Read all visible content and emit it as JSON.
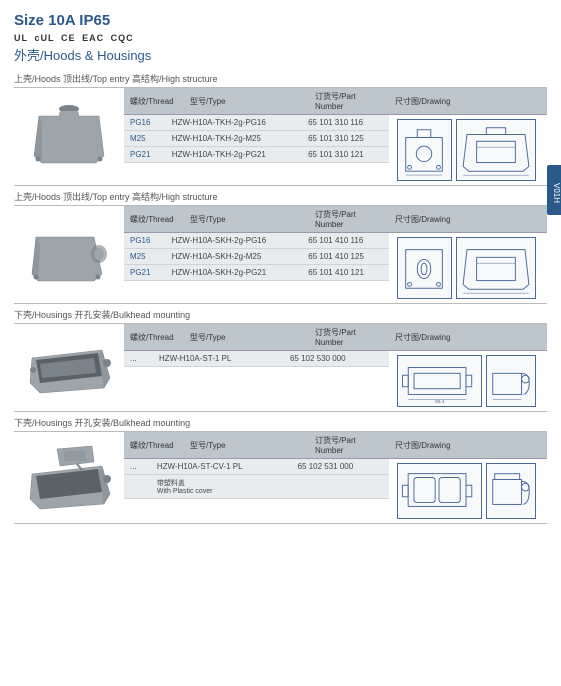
{
  "header": {
    "title": "Size 10A IP65",
    "certifications": [
      "UL",
      "cUL",
      "CE",
      "EAC",
      "CQC"
    ],
    "subtitle": "外壳/Hoods & Housings"
  },
  "side_tab": "V01H",
  "sections": [
    {
      "title": "上壳/Hoods 顶出线/Top entry 高结构/High structure",
      "image_type": "hood-top",
      "columns": {
        "thread": "螺纹/Thread",
        "type": "型号/Type",
        "part": "订货号/Part Number",
        "drawing": "尺寸图/Drawing"
      },
      "rows": [
        {
          "thread": "PG16",
          "type": "HZW-H10A-TKH-2g-PG16",
          "part": "65 101 310 116"
        },
        {
          "thread": "M25",
          "type": "HZW-H10A-TKH-2g-M25",
          "part": "65 101 310 125"
        },
        {
          "thread": "PG21",
          "type": "HZW-H10A-TKH-2g-PG21",
          "part": "65 101 310 121"
        }
      ],
      "drawing_type": "hood-top-draw"
    },
    {
      "title": "上壳/Hoods 顶出线/Top entry 高结构/High structure",
      "image_type": "hood-side",
      "columns": {
        "thread": "螺纹/Thread",
        "type": "型号/Type",
        "part": "订货号/Part Number",
        "drawing": "尺寸图/Drawing"
      },
      "rows": [
        {
          "thread": "PG16",
          "type": "HZW-H10A-SKH-2g-PG16",
          "part": "65 101 410 116"
        },
        {
          "thread": "M25",
          "type": "HZW-H10A-SKH-2g-M25",
          "part": "65 101 410 125"
        },
        {
          "thread": "PG21",
          "type": "HZW-H10A-SKH-2g-PG21",
          "part": "65 101 410 121"
        }
      ],
      "drawing_type": "hood-side-draw"
    },
    {
      "title": "下壳/Housings 开孔安装/Bulkhead mounting",
      "image_type": "housing-open",
      "columns": {
        "thread": "螺纹/Thread",
        "type": "型号/Type",
        "part": "订货号/Part Number",
        "drawing": "尺寸图/Drawing"
      },
      "rows": [
        {
          "thread": "...",
          "type": "HZW-H10A-ST-1 PL",
          "part": "65 102 530 000"
        }
      ],
      "drawing_type": "housing-open-draw"
    },
    {
      "title": "下壳/Housings 开孔安装/Bulkhead mounting",
      "image_type": "housing-cover",
      "columns": {
        "thread": "螺纹/Thread",
        "type": "型号/Type",
        "part": "订货号/Part Number",
        "drawing": "尺寸图/Drawing"
      },
      "rows": [
        {
          "thread": "...",
          "type": "HZW-H10A-ST-CV-1 PL",
          "part": "65 102 531 000"
        }
      ],
      "subrow": {
        "type": "带塑料盖",
        "type_en": "With Plastic cover"
      },
      "drawing_type": "housing-cover-draw"
    }
  ],
  "colors": {
    "brand": "#2a5a8a",
    "header_bg": "#bcc6cc",
    "row_bg": "#e8ecef",
    "product_gray": "#9da5ab",
    "product_dark": "#7a828a",
    "draw_stroke": "#4a6a9a"
  }
}
